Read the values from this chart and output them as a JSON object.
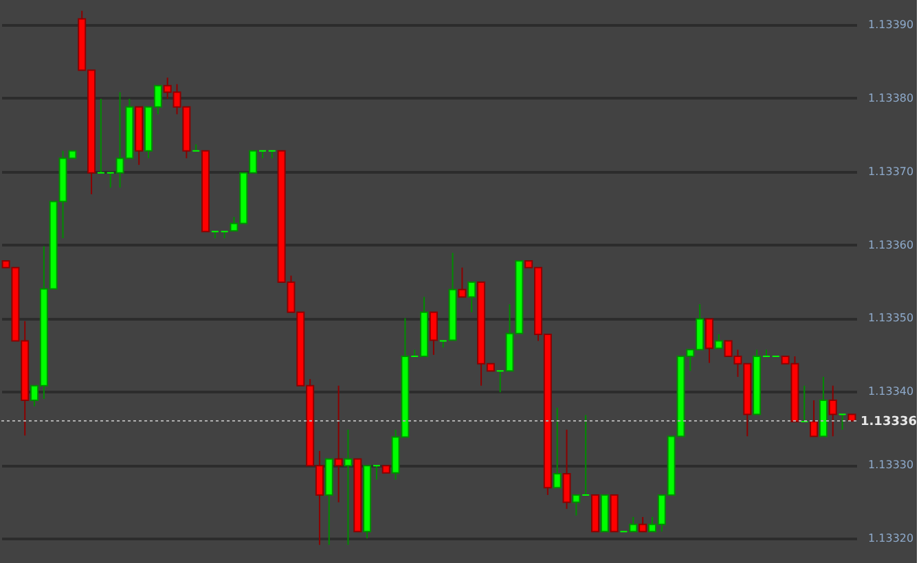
{
  "chart_data": {
    "type": "candlestick",
    "categories": [
      null,
      null,
      null,
      null,
      null,
      null,
      null,
      null,
      null,
      null,
      null,
      null,
      null,
      null,
      null,
      null,
      null,
      null,
      null,
      null,
      null,
      null,
      null,
      null,
      null,
      null,
      null,
      null,
      null,
      null,
      null,
      null,
      null,
      null,
      null,
      null,
      null,
      null,
      null,
      null,
      null,
      null,
      null,
      null,
      null,
      null,
      null,
      null,
      null,
      null,
      null,
      null,
      null,
      null,
      null,
      null,
      null,
      null,
      null,
      null,
      null,
      null,
      null,
      null,
      null,
      null,
      null,
      null,
      null,
      null,
      null,
      null,
      null,
      null,
      null,
      null,
      null,
      null,
      null,
      null,
      null,
      null,
      null,
      null,
      null,
      null,
      null,
      null,
      null,
      null
    ],
    "ohlc": [
      [
        1.133578,
        1.133578,
        1.133569,
        1.133569
      ],
      [
        1.133569,
        1.133569,
        1.133469,
        1.133469
      ],
      [
        1.133469,
        1.133496,
        1.13334,
        1.133388
      ],
      [
        1.133388,
        1.133408,
        1.13338,
        1.133408
      ],
      [
        1.133408,
        1.133598,
        1.13339,
        1.13354
      ],
      [
        1.13354,
        1.133659,
        1.13354,
        1.133659
      ],
      [
        1.133659,
        1.133728,
        1.133609,
        1.133718
      ],
      [
        1.133718,
        1.133728,
        1.133718,
        1.133728
      ],
      [
        1.133908,
        1.133919,
        1.133838,
        1.133838
      ],
      [
        1.133838,
        1.133838,
        1.133669,
        1.133698
      ],
      [
        1.133698,
        1.133799,
        1.133698,
        1.133698
      ],
      [
        1.133698,
        1.133698,
        1.133678,
        1.133698
      ],
      [
        1.133698,
        1.133808,
        1.133678,
        1.133718
      ],
      [
        1.133718,
        1.133799,
        1.133718,
        1.133788
      ],
      [
        1.133788,
        1.133788,
        1.133709,
        1.133728
      ],
      [
        1.133728,
        1.133788,
        1.133718,
        1.133788
      ],
      [
        1.133788,
        1.133817,
        1.133778,
        1.133817
      ],
      [
        1.133817,
        1.133828,
        1.133799,
        1.133808
      ],
      [
        1.133808,
        1.133819,
        1.133778,
        1.133788
      ],
      [
        1.133788,
        1.133788,
        1.133718,
        1.133728
      ],
      [
        1.133728,
        1.133737,
        1.133728,
        1.133728
      ],
      [
        1.133728,
        1.133728,
        1.133618,
        1.133618
      ],
      [
        1.133618,
        1.133618,
        1.133609,
        1.133618
      ],
      [
        1.133618,
        1.133618,
        1.133609,
        1.133618
      ],
      [
        1.133619,
        1.133638,
        1.133619,
        1.133629
      ],
      [
        1.133629,
        1.133698,
        1.133629,
        1.133698
      ],
      [
        1.133698,
        1.133728,
        1.133698,
        1.133728
      ],
      [
        1.133728,
        1.133728,
        1.133718,
        1.133728
      ],
      [
        1.133728,
        1.133728,
        1.133718,
        1.133728
      ],
      [
        1.133728,
        1.133728,
        1.133549,
        1.133549
      ],
      [
        1.133549,
        1.133558,
        1.133508,
        1.133508
      ],
      [
        1.133508,
        1.133508,
        1.133408,
        1.133408
      ],
      [
        1.133408,
        1.133417,
        1.133299,
        1.133299
      ],
      [
        1.133299,
        1.133319,
        1.133191,
        1.133259
      ],
      [
        1.133259,
        1.133308,
        1.133191,
        1.133308
      ],
      [
        1.133308,
        1.133408,
        1.133249,
        1.133299
      ],
      [
        1.133299,
        1.133348,
        1.133191,
        1.133308
      ],
      [
        1.133308,
        1.133308,
        1.133209,
        1.133209
      ],
      [
        1.133209,
        1.133299,
        1.1332,
        1.133299
      ],
      [
        1.133299,
        1.133299,
        1.13328,
        1.133299
      ],
      [
        1.133299,
        1.133299,
        1.133289,
        1.133289
      ],
      [
        1.133289,
        1.133348,
        1.13328,
        1.133338
      ],
      [
        1.133338,
        1.1335,
        1.133338,
        1.133448
      ],
      [
        1.133448,
        1.133457,
        1.133448,
        1.133448
      ],
      [
        1.133448,
        1.133529,
        1.133448,
        1.133508
      ],
      [
        1.133508,
        1.133508,
        1.13345,
        1.13347
      ],
      [
        1.133469,
        1.133469,
        1.13346,
        1.133469
      ],
      [
        1.13347,
        1.133589,
        1.13347,
        1.133539
      ],
      [
        1.133539,
        1.133569,
        1.133529,
        1.133529
      ],
      [
        1.133529,
        1.133549,
        1.133508,
        1.133549
      ],
      [
        1.133549,
        1.133549,
        1.133408,
        1.133438
      ],
      [
        1.133438,
        1.133438,
        1.133428,
        1.133428
      ],
      [
        1.133428,
        1.133428,
        1.133399,
        1.133428
      ],
      [
        1.133428,
        1.133519,
        1.133428,
        1.133479
      ],
      [
        1.133479,
        1.133578,
        1.133479,
        1.133578
      ],
      [
        1.133578,
        1.133578,
        1.133569,
        1.133569
      ],
      [
        1.133569,
        1.133569,
        1.133469,
        1.133478
      ],
      [
        1.133478,
        1.133478,
        1.133259,
        1.133269
      ],
      [
        1.133269,
        1.133378,
        1.133269,
        1.133288
      ],
      [
        1.133288,
        1.133348,
        1.13324,
        1.133249
      ],
      [
        1.133249,
        1.133259,
        1.133231,
        1.133259
      ],
      [
        1.133259,
        1.133368,
        1.133259,
        1.133259
      ],
      [
        1.133259,
        1.133259,
        1.133209,
        1.133209
      ],
      [
        1.133209,
        1.133259,
        1.133209,
        1.133259
      ],
      [
        1.133259,
        1.133259,
        1.133209,
        1.133209
      ],
      [
        1.133209,
        1.133209,
        1.133209,
        1.133209
      ],
      [
        1.133209,
        1.133229,
        1.133209,
        1.133219
      ],
      [
        1.133219,
        1.133229,
        1.133209,
        1.133209
      ],
      [
        1.133209,
        1.133229,
        1.133209,
        1.133219
      ],
      [
        1.133219,
        1.133259,
        1.133209,
        1.133259
      ],
      [
        1.133259,
        1.133339,
        1.133259,
        1.133339
      ],
      [
        1.133339,
        1.133448,
        1.133339,
        1.133448
      ],
      [
        1.133448,
        1.133457,
        1.133428,
        1.133457
      ],
      [
        1.133457,
        1.133519,
        1.133457,
        1.133499
      ],
      [
        1.133499,
        1.133499,
        1.133439,
        1.133459
      ],
      [
        1.133459,
        1.133478,
        1.133459,
        1.133469
      ],
      [
        1.133469,
        1.133469,
        1.133448,
        1.133448
      ],
      [
        1.133448,
        1.133457,
        1.13342,
        1.133438
      ],
      [
        1.133438,
        1.133438,
        1.133339,
        1.133369
      ],
      [
        1.133369,
        1.133457,
        1.133369,
        1.133448
      ],
      [
        1.133448,
        1.133457,
        1.133448,
        1.133448
      ],
      [
        1.133448,
        1.133448,
        1.133448,
        1.133448
      ],
      [
        1.133448,
        1.133448,
        1.133438,
        1.133438
      ],
      [
        1.133438,
        1.133448,
        1.133359,
        1.133359
      ],
      [
        1.133359,
        1.133408,
        1.133359,
        1.133359
      ],
      [
        1.133359,
        1.133388,
        1.133339,
        1.133339
      ],
      [
        1.133339,
        1.13342,
        1.133339,
        1.133388
      ],
      [
        1.133388,
        1.133408,
        1.133339,
        1.133369
      ],
      [
        1.133369,
        1.133369,
        1.133348,
        1.133369
      ],
      [
        1.133369,
        1.133369,
        1.13336,
        1.13336
      ]
    ],
    "colors": [
      "#ff0000",
      "#ff0000",
      "#ff0000",
      "#00ff00",
      "#00ff00",
      "#00ff00",
      "#00ff00",
      "#00ff00",
      "#ff0000",
      "#ff0000",
      "#00ff00",
      "#00ff00",
      "#00ff00",
      "#00ff00",
      "#ff0000",
      "#00ff00",
      "#00ff00",
      "#ff0000",
      "#ff0000",
      "#ff0000",
      "#00ff00",
      "#ff0000",
      "#00ff00",
      "#00ff00",
      "#00ff00",
      "#00ff00",
      "#00ff00",
      "#00ff00",
      "#00ff00",
      "#ff0000",
      "#ff0000",
      "#ff0000",
      "#ff0000",
      "#ff0000",
      "#00ff00",
      "#ff0000",
      "#00ff00",
      "#ff0000",
      "#00ff00",
      "#00ff00",
      "#ff0000",
      "#00ff00",
      "#00ff00",
      "#00ff00",
      "#00ff00",
      "#ff0000",
      "#00ff00",
      "#00ff00",
      "#ff0000",
      "#00ff00",
      "#ff0000",
      "#ff0000",
      "#00ff00",
      "#00ff00",
      "#00ff00",
      "#ff0000",
      "#ff0000",
      "#ff0000",
      "#00ff00",
      "#ff0000",
      "#00ff00",
      "#00ff00",
      "#ff0000",
      "#00ff00",
      "#ff0000",
      "#00ff00",
      "#00ff00",
      "#ff0000",
      "#00ff00",
      "#00ff00",
      "#00ff00",
      "#00ff00",
      "#00ff00",
      "#00ff00",
      "#ff0000",
      "#00ff00",
      "#ff0000",
      "#ff0000",
      "#ff0000",
      "#00ff00",
      "#00ff00",
      "#00ff00",
      "#ff0000",
      "#ff0000",
      "#00ff00",
      "#ff0000",
      "#00ff00",
      "#ff0000",
      "#00ff00",
      "#ff0000"
    ],
    "ylim": [
      1.13317,
      1.13393
    ],
    "yticks": [
      {
        "value": 1.1332,
        "label": "1.13320"
      },
      {
        "value": 1.1333,
        "label": "1.13330"
      },
      {
        "value": 1.1334,
        "label": "1.13340"
      },
      {
        "value": 1.1335,
        "label": "1.13350"
      },
      {
        "value": 1.1336,
        "label": "1.13360"
      },
      {
        "value": 1.1337,
        "label": "1.13370"
      },
      {
        "value": 1.1338,
        "label": "1.13380"
      },
      {
        "value": 1.1339,
        "label": "1.13390"
      }
    ],
    "grid": "y",
    "tick_labels": "y",
    "ref_lines": [
      {
        "axis": "y",
        "value": 1.13336,
        "label": "1.13336",
        "color": "#b0b0b0",
        "line_style": "dotted"
      }
    ]
  }
}
